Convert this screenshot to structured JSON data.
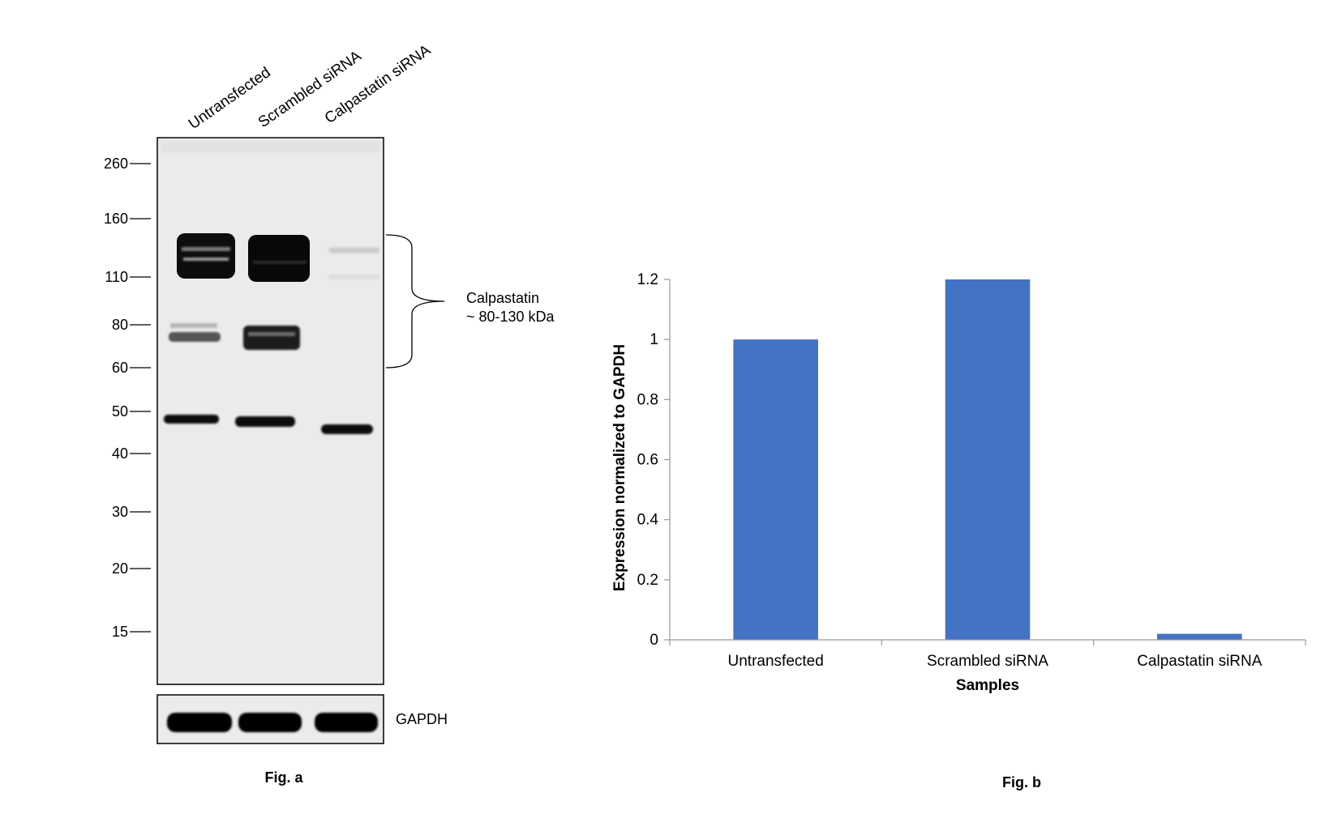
{
  "figure_a": {
    "lanes": [
      "Untransfected",
      "Scrambled siRNA",
      "Calpastatin siRNA"
    ],
    "mw_markers": [
      "260",
      "160",
      "110",
      "80",
      "60",
      "50",
      "40",
      "30",
      "20",
      "15"
    ],
    "target_label_line1": "Calpastatin",
    "target_label_line2": "~ 80-130 kDa",
    "loading_control": "GAPDH",
    "caption": "Fig. a"
  },
  "figure_b": {
    "caption": "Fig. b"
  },
  "chart_data": {
    "type": "bar",
    "categories": [
      "Untransfected",
      "Scrambled siRNA",
      "Calpastatin siRNA"
    ],
    "values": [
      1.0,
      1.2,
      0.02
    ],
    "xlabel": "Samples",
    "ylabel": "Expression normalized to GAPDH",
    "ylim": [
      0,
      1.2
    ],
    "yticks": [
      "0",
      "0.2",
      "0.4",
      "0.6",
      "0.8",
      "1",
      "1.2"
    ],
    "bar_color": "#4472C4",
    "grid": false,
    "legend": "none"
  }
}
